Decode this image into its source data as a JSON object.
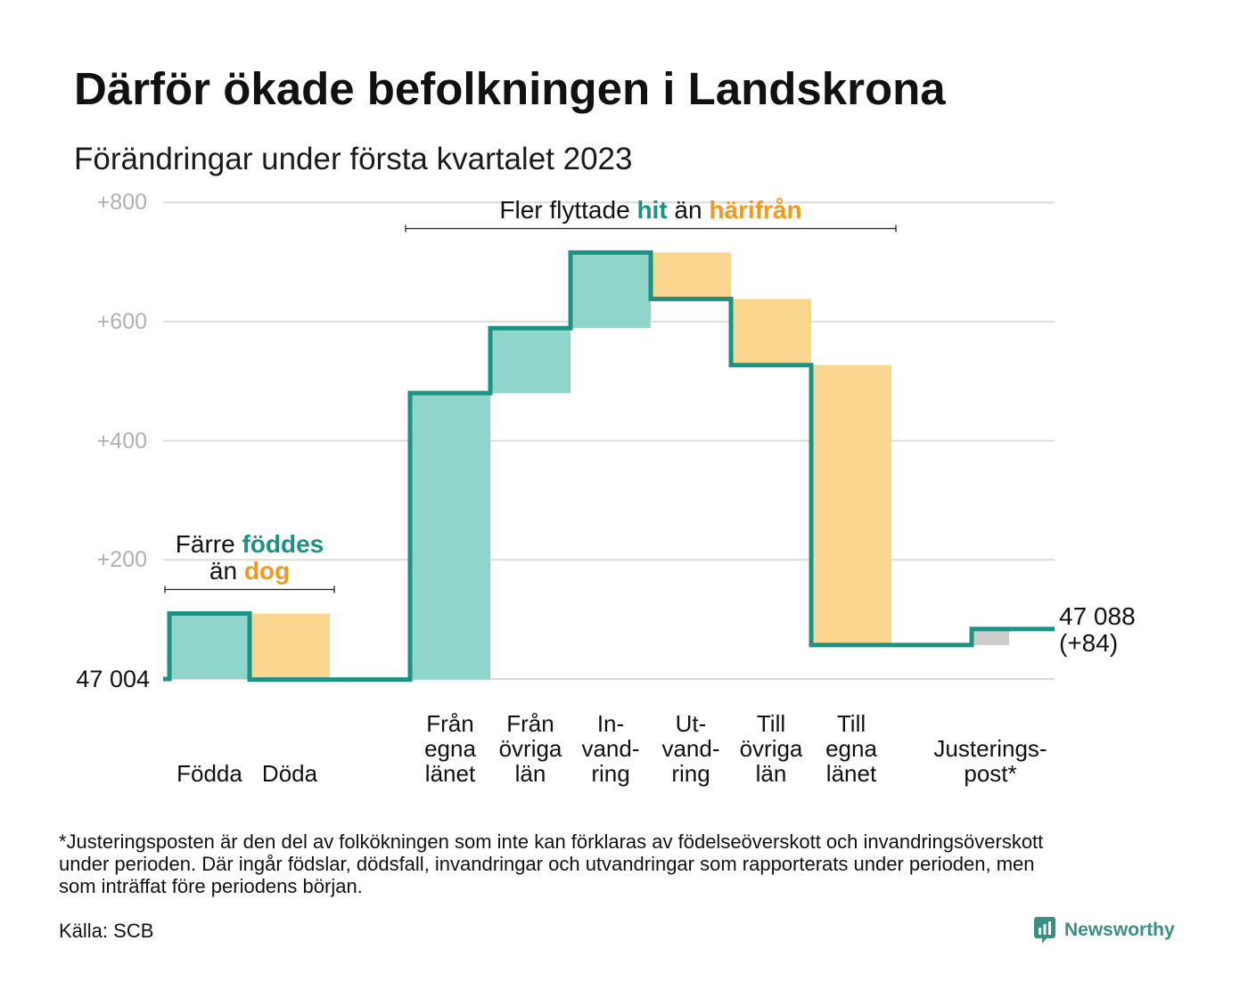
{
  "chart_data": {
    "type": "bar",
    "waterfall": true,
    "title": "Därför ökade befolkningen i Landskrona",
    "subtitle": "Förändringar under första kvartalet 2023",
    "baseline_label": "47 004",
    "end_label": [
      "47 088",
      "(+84)"
    ],
    "ylim": [
      0,
      800
    ],
    "yticks": [
      {
        "value": 200,
        "label": "+200"
      },
      {
        "value": 400,
        "label": "+400"
      },
      {
        "value": 600,
        "label": "+600"
      },
      {
        "value": 800,
        "label": "+800"
      }
    ],
    "grid": true,
    "categories": [
      [
        "Födda"
      ],
      [
        "Döda"
      ],
      [
        "Från",
        "egna",
        "länet"
      ],
      [
        "Från",
        "övriga",
        "län"
      ],
      [
        "In-",
        "vand-",
        "ring"
      ],
      [
        "Ut-",
        "vand-",
        "ring"
      ],
      [
        "Till",
        "övriga",
        "län"
      ],
      [
        "Till",
        "egna",
        "länet"
      ],
      [
        "Justerings-",
        "post*"
      ]
    ],
    "values": [
      110,
      -111,
      481,
      109,
      127,
      -78,
      -111,
      -470,
      27
    ],
    "bar_colors": [
      "#8fd5cc",
      "#fad68e",
      "#8fd5cc",
      "#8fd5cc",
      "#8fd5cc",
      "#fad68e",
      "#fad68e",
      "#fad68e",
      "#cccccc"
    ],
    "annotations": [
      {
        "span": [
          0,
          1
        ],
        "lines": [
          [
            {
              "text": "Färre ",
              "color": "#111111",
              "bold": false
            },
            {
              "text": "föddes",
              "color": "#1b9383",
              "bold": true
            }
          ],
          [
            {
              "text": "än ",
              "color": "#111111",
              "bold": false
            },
            {
              "text": "dog",
              "color": "#f29a1f",
              "bold": true
            }
          ]
        ]
      },
      {
        "span": [
          2,
          7
        ],
        "lines": [
          [
            {
              "text": "Fler flyttade ",
              "color": "#111111",
              "bold": false
            },
            {
              "text": "hit",
              "color": "#1b9383",
              "bold": true
            },
            {
              "text": " än ",
              "color": "#111111",
              "bold": false
            },
            {
              "text": "härifrån",
              "color": "#f29a1f",
              "bold": true
            }
          ]
        ]
      }
    ],
    "colors": {
      "line": "#1b9383",
      "grid": "#dcdcdc",
      "tick_label": "#b0b0b0",
      "bracket": "#222222"
    }
  },
  "footnote": {
    "lines": [
      "*Justeringsposten är den del av folkökningen som inte kan förklaras av födelseöverskott och invandringsöverskott",
      "under perioden. Där ingår födslar, dödsfall, invandringar och utvandringar som rapporterats under perioden, men",
      "som inträffat före periodens början."
    ]
  },
  "source": "Källa: SCB",
  "branding": {
    "logo_text": "Newsworthy",
    "logo_icon": "newsworthy-chart-bubble-icon",
    "logo_color": "#3a8e82"
  }
}
